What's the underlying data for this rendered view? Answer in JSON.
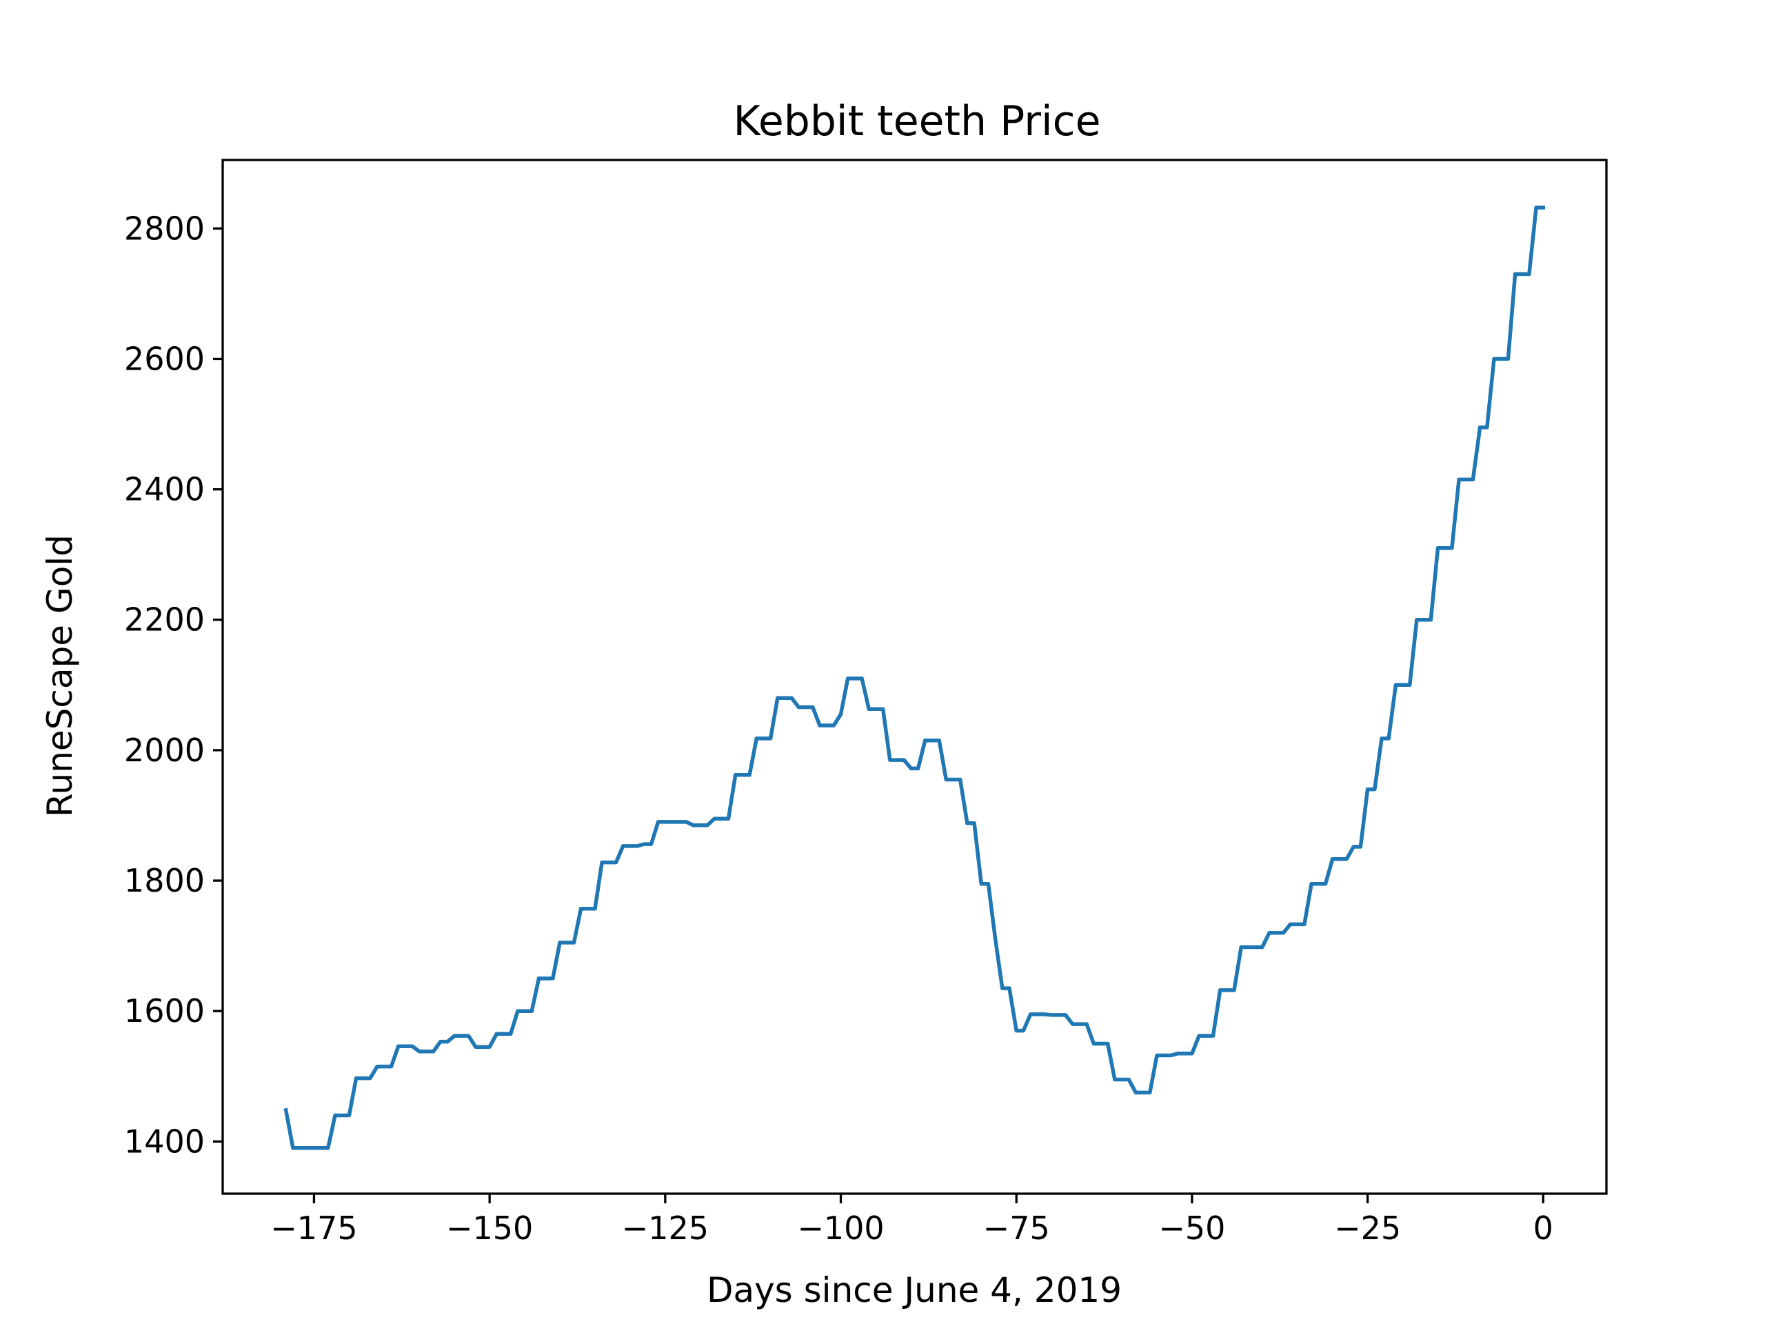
{
  "chart_data": {
    "type": "line",
    "title": "Kebbit teeth Price",
    "xlabel": "Days since June 4, 2019",
    "ylabel": "RuneScape Gold",
    "xlim": [
      -188,
      9
    ],
    "ylim": [
      1320,
      2905
    ],
    "xticks": [
      -175,
      -150,
      -125,
      -100,
      -75,
      -50,
      -25,
      0
    ],
    "yticks": [
      1400,
      1600,
      1800,
      2000,
      2200,
      2400,
      2600,
      2800
    ],
    "grid": false,
    "legend": "none",
    "line_color": "#1f77b4",
    "series": [
      {
        "x": [
          -179,
          -178,
          -177,
          -176,
          -175,
          -174,
          -173,
          -172,
          -171,
          -170,
          -169,
          -168,
          -167,
          -166,
          -165,
          -164,
          -163,
          -162,
          -161,
          -160,
          -159,
          -158,
          -157,
          -156,
          -155,
          -154,
          -153,
          -152,
          -151,
          -150,
          -149,
          -148,
          -147,
          -146,
          -145,
          -144,
          -143,
          -142,
          -141,
          -140,
          -139,
          -138,
          -137,
          -136,
          -135,
          -134,
          -133,
          -132,
          -131,
          -130,
          -129,
          -128,
          -127,
          -126,
          -125,
          -124,
          -123,
          -122,
          -121,
          -120,
          -119,
          -118,
          -117,
          -116,
          -115,
          -114,
          -113,
          -112,
          -111,
          -110,
          -109,
          -108,
          -107,
          -106,
          -105,
          -104,
          -103,
          -102,
          -101,
          -100,
          -99,
          -98,
          -97,
          -96,
          -95,
          -94,
          -93,
          -92,
          -91,
          -90,
          -89,
          -88,
          -87,
          -86,
          -85,
          -84,
          -83,
          -82,
          -81,
          -80,
          -79,
          -78,
          -77,
          -76,
          -75,
          -74,
          -73,
          -72,
          -71,
          -70,
          -69,
          -68,
          -67,
          -66,
          -65,
          -64,
          -63,
          -62,
          -61,
          -60,
          -59,
          -58,
          -57,
          -56,
          -55,
          -54,
          -53,
          -52,
          -51,
          -50,
          -49,
          -48,
          -47,
          -46,
          -45,
          -44,
          -43,
          -42,
          -41,
          -40,
          -39,
          -38,
          -37,
          -36,
          -35,
          -34,
          -33,
          -32,
          -31,
          -30,
          -29,
          -28,
          -27,
          -26,
          -25,
          -24,
          -23,
          -22,
          -21,
          -20,
          -19,
          -18,
          -17,
          -16,
          -15,
          -14,
          -13,
          -12,
          -11,
          -10,
          -9,
          -8,
          -7,
          -6,
          -5,
          -4,
          -3,
          -2,
          -1,
          0
        ],
        "y": [
          1448,
          1390,
          1390,
          1390,
          1390,
          1390,
          1390,
          1440,
          1440,
          1440,
          1497,
          1497,
          1497,
          1515,
          1515,
          1515,
          1546,
          1546,
          1546,
          1538,
          1538,
          1538,
          1553,
          1553,
          1562,
          1562,
          1562,
          1545,
          1545,
          1545,
          1565,
          1565,
          1565,
          1600,
          1600,
          1600,
          1650,
          1650,
          1650,
          1705,
          1705,
          1705,
          1757,
          1757,
          1757,
          1828,
          1828,
          1828,
          1853,
          1853,
          1853,
          1856,
          1856,
          1890,
          1890,
          1890,
          1890,
          1890,
          1885,
          1885,
          1885,
          1895,
          1895,
          1895,
          1962,
          1962,
          1962,
          2018,
          2018,
          2018,
          2080,
          2080,
          2080,
          2066,
          2066,
          2066,
          2038,
          2038,
          2038,
          2055,
          2110,
          2110,
          2110,
          2063,
          2063,
          2063,
          1985,
          1985,
          1985,
          1972,
          1972,
          2015,
          2015,
          2015,
          1955,
          1955,
          1955,
          1888,
          1888,
          1795,
          1795,
          1710,
          1635,
          1635,
          1570,
          1570,
          1595,
          1595,
          1595,
          1594,
          1594,
          1594,
          1580,
          1580,
          1580,
          1550,
          1550,
          1550,
          1495,
          1495,
          1495,
          1475,
          1475,
          1475,
          1532,
          1532,
          1532,
          1535,
          1535,
          1535,
          1562,
          1562,
          1562,
          1632,
          1632,
          1632,
          1698,
          1698,
          1698,
          1698,
          1720,
          1720,
          1720,
          1733,
          1733,
          1733,
          1795,
          1795,
          1795,
          1833,
          1833,
          1833,
          1852,
          1852,
          1940,
          1940,
          2018,
          2018,
          2100,
          2100,
          2100,
          2200,
          2200,
          2200,
          2310,
          2310,
          2310,
          2415,
          2415,
          2415,
          2495,
          2495,
          2600,
          2600,
          2600,
          2730,
          2730,
          2730,
          2832,
          2832
        ]
      }
    ]
  }
}
